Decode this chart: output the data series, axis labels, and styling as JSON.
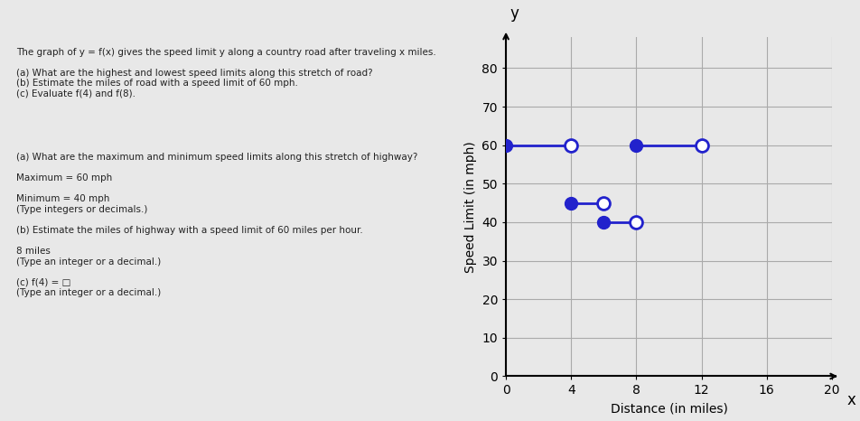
{
  "title": "y",
  "xlabel": "Distance (in miles)",
  "ylabel": "Speed Limit (in mph)",
  "xlim": [
    0,
    20
  ],
  "ylim": [
    0,
    88
  ],
  "xticks": [
    0,
    4,
    8,
    12,
    16,
    20
  ],
  "yticks": [
    0,
    10,
    20,
    30,
    40,
    50,
    60,
    70,
    80
  ],
  "segments": [
    {
      "x_start": 0,
      "x_end": 4,
      "y": 60
    },
    {
      "x_start": 4,
      "x_end": 6,
      "y": 45
    },
    {
      "x_start": 6,
      "x_end": 8,
      "y": 40
    },
    {
      "x_start": 8,
      "x_end": 12,
      "y": 60
    }
  ],
  "line_color": "#2222CC",
  "solid_dot_color": "#2222CC",
  "open_dot_color": "#ffffff",
  "open_dot_edge_color": "#2222CC",
  "dot_size": 10,
  "dot_linewidth": 2,
  "line_width": 2,
  "background_color": "#f0f0f0",
  "grid_color": "#aaaaaa",
  "figsize": [
    9.53,
    4.66
  ],
  "dpi": 100
}
